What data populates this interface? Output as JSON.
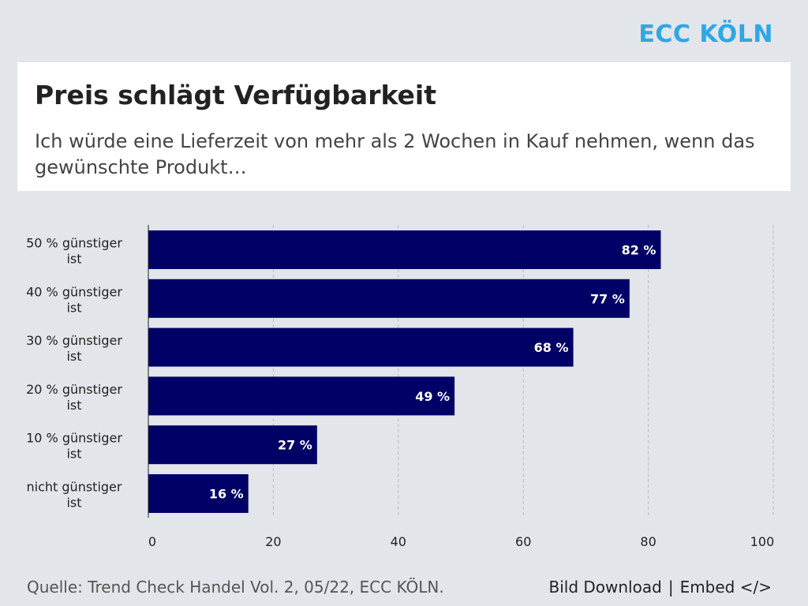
{
  "brand": "ECC KÖLN",
  "header": {
    "title": "Preis schlägt Verfügbarkeit",
    "subtitle": "Ich würde eine Lieferzeit von mehr als 2 Wochen in Kauf nehmen, wenn das gewünschte Produkt…"
  },
  "footer": {
    "source": "Quelle: Trend Check Handel Vol. 2, 05/22, ECC KÖLN.",
    "download_label": "Bild Download",
    "separator": "|",
    "embed_label": "Embed </>"
  },
  "colors": {
    "bar": "#000066",
    "bar_label": "#ffffff",
    "grid": "#b8bcc2",
    "axis": "#222222",
    "brand": "#2ea7e8"
  },
  "chart_data": {
    "type": "bar",
    "orientation": "horizontal",
    "title": "Preis schlägt Verfügbarkeit",
    "subtitle": "Ich würde eine Lieferzeit von mehr als 2 Wochen in Kauf nehmen, wenn das gewünschte Produkt…",
    "categories": [
      [
        "50 % günstiger",
        "ist"
      ],
      [
        "40 % günstiger",
        "ist"
      ],
      [
        "30 % günstiger",
        "ist"
      ],
      [
        "20 % günstiger",
        "ist"
      ],
      [
        "10 % günstiger",
        "ist"
      ],
      [
        "nicht günstiger",
        "ist"
      ]
    ],
    "values": [
      82,
      77,
      68,
      49,
      27,
      16
    ],
    "value_labels": [
      "82 %",
      "77 %",
      "68 %",
      "49 %",
      "27 %",
      "16 %"
    ],
    "xlim": [
      0,
      100
    ],
    "xticks": [
      0,
      20,
      40,
      60,
      80,
      100
    ],
    "xlabel": "",
    "ylabel": "",
    "grid": "vertical dashed",
    "legend": "none"
  }
}
